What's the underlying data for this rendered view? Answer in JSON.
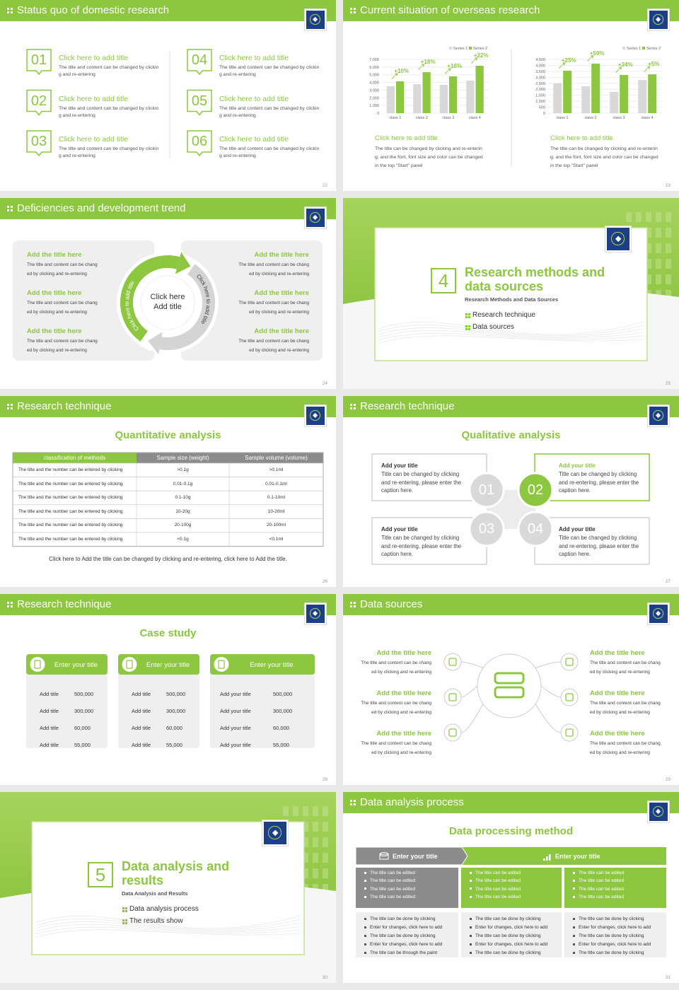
{
  "slides": [
    {
      "header": "Status quo of domestic research",
      "items": [
        {
          "num": "01",
          "title": "Click here to add title",
          "text": "The title and content can be changed by clicking and re-entering"
        },
        {
          "num": "02",
          "title": "Click here to add title",
          "text": "The title and content can be changed by clicking and re-entering"
        },
        {
          "num": "03",
          "title": "Click here to add title",
          "text": "The title and content can be changed by clicking and re-entering"
        },
        {
          "num": "04",
          "title": "Click here to add title",
          "text": "The title and content can be changed by clicking and re-entering"
        },
        {
          "num": "05",
          "title": "Click here to add title",
          "text": "The title and content can be changed by clicking and re-entering"
        },
        {
          "num": "06",
          "title": "Click here to add title",
          "text": "The title and content can be changed by clicking and re-entering"
        }
      ],
      "page": "22"
    },
    {
      "header": "Current situation of overseas research",
      "charts": [
        {
          "type": "bar",
          "categories": [
            "class 1",
            "class 2",
            "class 3",
            "class 4"
          ],
          "series": [
            {
              "name": "Series 1",
              "color": "#d9d9d9",
              "values": [
                3500,
                3780,
                3680,
                4240
              ]
            },
            {
              "name": "Series 2",
              "color": "#8dc63f",
              "values": [
                4140,
                5340,
                4790,
                6170
              ]
            }
          ],
          "annotations": [
            "+10%",
            "+18%",
            "+16%",
            "+22%"
          ],
          "ylim": [
            0,
            7000
          ],
          "yticks": [
            0,
            {
              "value": 1000,
              "label": "1,000"
            },
            {
              "value": 2000,
              "label": "2,000"
            },
            {
              "value": 3000,
              "label": "3,000"
            },
            {
              "value": 4000,
              "label": "4,000"
            },
            {
              "value": 5000,
              "label": "5,000"
            },
            {
              "value": 6000,
              "label": "6,000"
            },
            {
              "value": 7000,
              "label": "7,000"
            }
          ],
          "title": "Click here to add title",
          "text": "The title can be changed by clicking and re-entering, and the font, font size and color can be changed in the top \"Start\" panel"
        },
        {
          "type": "bar",
          "categories": [
            "class 1",
            "class 2",
            "class 3",
            "class 4"
          ],
          "series": [
            {
              "name": "Series 1",
              "color": "#d9d9d9",
              "values": [
                2490,
                2250,
                1780,
                2780
              ]
            },
            {
              "name": "Series 2",
              "color": "#8dc63f",
              "values": [
                3550,
                4150,
                3200,
                3250
              ]
            }
          ],
          "annotations": [
            "+25%",
            "+50%",
            "+34%",
            "+5%"
          ],
          "ylim": [
            0,
            4500
          ],
          "yticks": [
            0,
            500,
            {
              "value": 1000,
              "label": "1,000"
            },
            {
              "value": 1500,
              "label": "1,500"
            },
            {
              "value": 2000,
              "label": "2,000"
            },
            {
              "value": 2500,
              "label": "2,500"
            },
            {
              "value": 3000,
              "label": "3,000"
            },
            {
              "value": 3500,
              "label": "3,500"
            },
            {
              "value": 4000,
              "label": "4,000"
            },
            {
              "value": 4500,
              "label": "4,500"
            }
          ],
          "title": "Click here to add title",
          "text": "The title can be changed by clicking and re-entering, and the font, font size and color can be changed in the top \"Start\" panel"
        }
      ],
      "page": "23"
    },
    {
      "header": "Deficiencies and development trend",
      "items": [
        {
          "title": "Add the title here",
          "text": "The title and content can be changed by clicking and re-entering"
        },
        {
          "title": "Add the title here",
          "text": "The title and content can be changed by clicking and re-entering"
        },
        {
          "title": "Add the title here",
          "text": "The title and content can be changed by clicking and re-entering"
        },
        {
          "title": "Add the title here",
          "text": "The title and content can be changed by clicking and re-entering"
        },
        {
          "title": "Add the title here",
          "text": "The title and content can be changed by clicking and re-entering"
        },
        {
          "title": "Add the title here",
          "text": "The title and content can be changed by clicking and re-entering"
        }
      ],
      "center": "Click here Add title",
      "arc_left": "Click here to add title",
      "arc_right": "Click here to add title",
      "page": "24"
    },
    {
      "number": "4",
      "title": "Research methods and data sources",
      "subtitle": "Research Methods and Data Sources",
      "bullets": [
        "Research technique",
        "Data sources"
      ],
      "page": "25"
    },
    {
      "header": "Research technique",
      "heading": "Quantitative analysis",
      "table": {
        "columns": [
          "classification of methods",
          "Sample size (weight)",
          "Sample volume (volume)"
        ],
        "rows": [
          [
            "The title and the number can be entered by clicking",
            ">0.1g",
            ">0.1ml"
          ],
          [
            "The title and the number can be entered by clicking",
            "0.01-0.1g",
            "0.01-0.1ml"
          ],
          [
            "The title and the number can be entered by clicking",
            "0.1-10g",
            "0.1-10ml"
          ],
          [
            "The title and the number can be entered by clicking",
            "10-20g",
            "10-20ml"
          ],
          [
            "The title and the number can be entered by clicking",
            "20-100g",
            "20-100ml"
          ],
          [
            "The title and the number can be entered by clicking",
            "<0.1g",
            "<0.1ml"
          ]
        ]
      },
      "footer": "Click here to Add the title can be changed by clicking and re-entering, click here to Add the title.",
      "page": "26"
    },
    {
      "header": "Research technique",
      "heading": "Qualitative analysis",
      "items": [
        {
          "num": "01",
          "title": "Add your title",
          "text": "Title can be changed by clicking and re-entering, please enter the caption here."
        },
        {
          "num": "02",
          "title": "Add your title",
          "text": "Title can be changed by clicking and re-entering, please enter the caption here."
        },
        {
          "num": "03",
          "title": "Add your title",
          "text": "Title can be changed by clicking and re-entering, please enter the caption here."
        },
        {
          "num": "04",
          "title": "Add your title",
          "text": "Title can be changed by clicking and re-entering, please enter the caption here."
        }
      ],
      "page": "27"
    },
    {
      "header": "Research technique",
      "heading": "Case study",
      "cards": [
        {
          "title": "Enter your title",
          "rows": [
            [
              "Add title",
              "500,000"
            ],
            [
              "Add title",
              "300,000"
            ],
            [
              "Add title",
              "60,000"
            ],
            [
              "Add title",
              "55,000"
            ]
          ]
        },
        {
          "title": "Enter your title",
          "rows": [
            [
              "Add title",
              "500,000"
            ],
            [
              "Add title",
              "300,000"
            ],
            [
              "Add title",
              "60,000"
            ],
            [
              "Add title",
              "55,000"
            ]
          ]
        },
        {
          "title": "Enter your title",
          "rows": [
            [
              "Add your title",
              "500,000"
            ],
            [
              "Add your title",
              "300,000"
            ],
            [
              "Add your title",
              "60,000"
            ],
            [
              "Add your title",
              "55,000"
            ]
          ]
        }
      ],
      "page": "28"
    },
    {
      "header": "Data sources",
      "items": [
        {
          "title": "Add the title here",
          "text": "The title and content can be changed by clicking and re-entering"
        },
        {
          "title": "Add the title here",
          "text": "The title and content can be changed by clicking and re-entering"
        },
        {
          "title": "Add the title here",
          "text": "The title and content can be changed by clicking and re-entering"
        },
        {
          "title": "Add the title here",
          "text": "The title and content can be changed by clicking and re-entering"
        },
        {
          "title": "Add the title here",
          "text": "The title and content can be changed by clicking and re-entering"
        },
        {
          "title": "Add the title here",
          "text": "The title and content can be changed by clicking and re-entering"
        }
      ],
      "page": "29"
    },
    {
      "number": "5",
      "title": "Data analysis and results",
      "subtitle": "Data Analysis and Results",
      "bullets": [
        "Data analysis process",
        "The results show"
      ],
      "page": "30"
    },
    {
      "header": "Data analysis process",
      "heading": "Data processing method",
      "bar": [
        "Enter your title",
        "Enter your title"
      ],
      "columns": [
        {
          "top": [
            "The title can be edited",
            "The title can be edited",
            "The title can be edited",
            "The title can be edited"
          ],
          "bottom": [
            "The title can be done by clicking",
            "Enter for changes, click here to add",
            "The title can be done by clicking",
            "Enter for changes, click here to add",
            "The title can be through the paint"
          ]
        },
        {
          "top": [
            "The title can be edited",
            "The title can be edited",
            "The title can be edited",
            "The title can be edited"
          ],
          "bottom": [
            "The title can be done by clicking",
            "Enter for changes, click here to add",
            "The title can be done by clicking",
            "Enter for changes, click here to add",
            "The title can be done by clicking"
          ]
        },
        {
          "top": [
            "The title can be edited",
            "The title can be edited",
            "The title can be edited",
            "The title can be edited"
          ],
          "bottom": [
            "The title can be done by clicking",
            "Enter for changes, click here to add",
            "The title can be done by clicking",
            "Enter for changes, click here to add",
            "The title can be done by clicking"
          ]
        }
      ],
      "page": "31"
    }
  ]
}
